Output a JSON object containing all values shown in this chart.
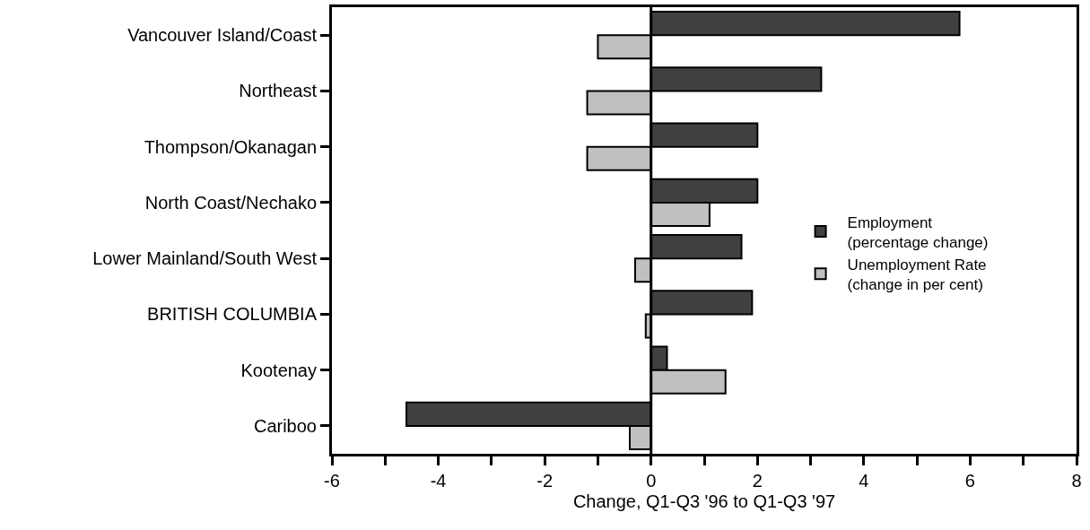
{
  "chart_data": {
    "type": "bar",
    "orientation": "horizontal",
    "xlabel": "Change, Q1-Q3 '96 to Q1-Q3 '97",
    "categories": [
      "Vancouver Island/Coast",
      "Northeast",
      "Thompson/Okanagan",
      "North Coast/Nechako",
      "Lower Mainland/South West",
      "BRITISH COLUMBIA",
      "Kootenay",
      "Cariboo"
    ],
    "series": [
      {
        "name": "Employment\n(percentage change)",
        "color": "#404040",
        "values": [
          5.8,
          3.2,
          2.0,
          2.0,
          1.7,
          1.9,
          0.3,
          -4.6
        ]
      },
      {
        "name": "Unemployment Rate\n(change in per cent)",
        "color": "#c0c0c0",
        "values": [
          -1.0,
          -1.2,
          -1.2,
          1.1,
          -0.3,
          -0.1,
          1.4,
          -0.4
        ]
      }
    ],
    "xlim": [
      -6,
      8
    ],
    "xticks": [
      -6,
      {
        "value": -5,
        "label": null
      },
      -4,
      {
        "value": -3,
        "label": null
      },
      -2,
      {
        "value": -1,
        "label": null
      },
      0,
      {
        "value": 1,
        "label": null
      },
      2,
      {
        "value": 3,
        "label": null
      },
      4,
      {
        "value": 5,
        "label": null
      },
      6,
      {
        "value": 7,
        "label": null
      },
      8
    ],
    "ref_lines": [
      {
        "axis": "x",
        "value": 0,
        "color": "#000000"
      }
    ],
    "grid": false,
    "legend": "right"
  }
}
